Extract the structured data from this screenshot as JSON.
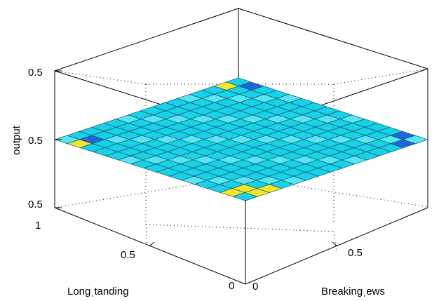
{
  "chart_data": {
    "type": "surface",
    "title": "",
    "zlabel": "output",
    "xlabel": "Longˌtanding",
    "ylabel": "Breakingˌews",
    "x_ticks": [
      "1",
      "0.5",
      "0"
    ],
    "y_ticks": [
      "0",
      "0.5"
    ],
    "z_ticks": [
      "0.5",
      "0.5",
      "0.5"
    ],
    "x_range": [
      0,
      1
    ],
    "y_range": [
      0,
      1
    ],
    "grid": true,
    "grid_size": 15,
    "z_value_all": 0.5,
    "colors": {
      "base": "#19d2e6",
      "light": "#57e6f2",
      "dark": "#2166d8",
      "yellow": "#f2e62a",
      "edge": "#0a3f5f"
    },
    "highlight_cells": [
      {
        "i": 1,
        "j": 0,
        "tone": "yellow"
      },
      {
        "i": 1,
        "j": 1,
        "tone": "dark"
      },
      {
        "i": 13,
        "j": 14,
        "tone": "dark"
      },
      {
        "i": 14,
        "j": 13,
        "tone": "dark"
      },
      {
        "i": 0,
        "j": 13,
        "tone": "yellow"
      },
      {
        "i": 1,
        "j": 14,
        "tone": "dark"
      },
      {
        "i": 13,
        "j": 0,
        "tone": "yellow"
      },
      {
        "i": 13,
        "j": 1,
        "tone": "yellow"
      },
      {
        "i": 14,
        "j": 1,
        "tone": "yellow"
      },
      {
        "i": 14,
        "j": 2,
        "tone": "yellow"
      }
    ]
  }
}
